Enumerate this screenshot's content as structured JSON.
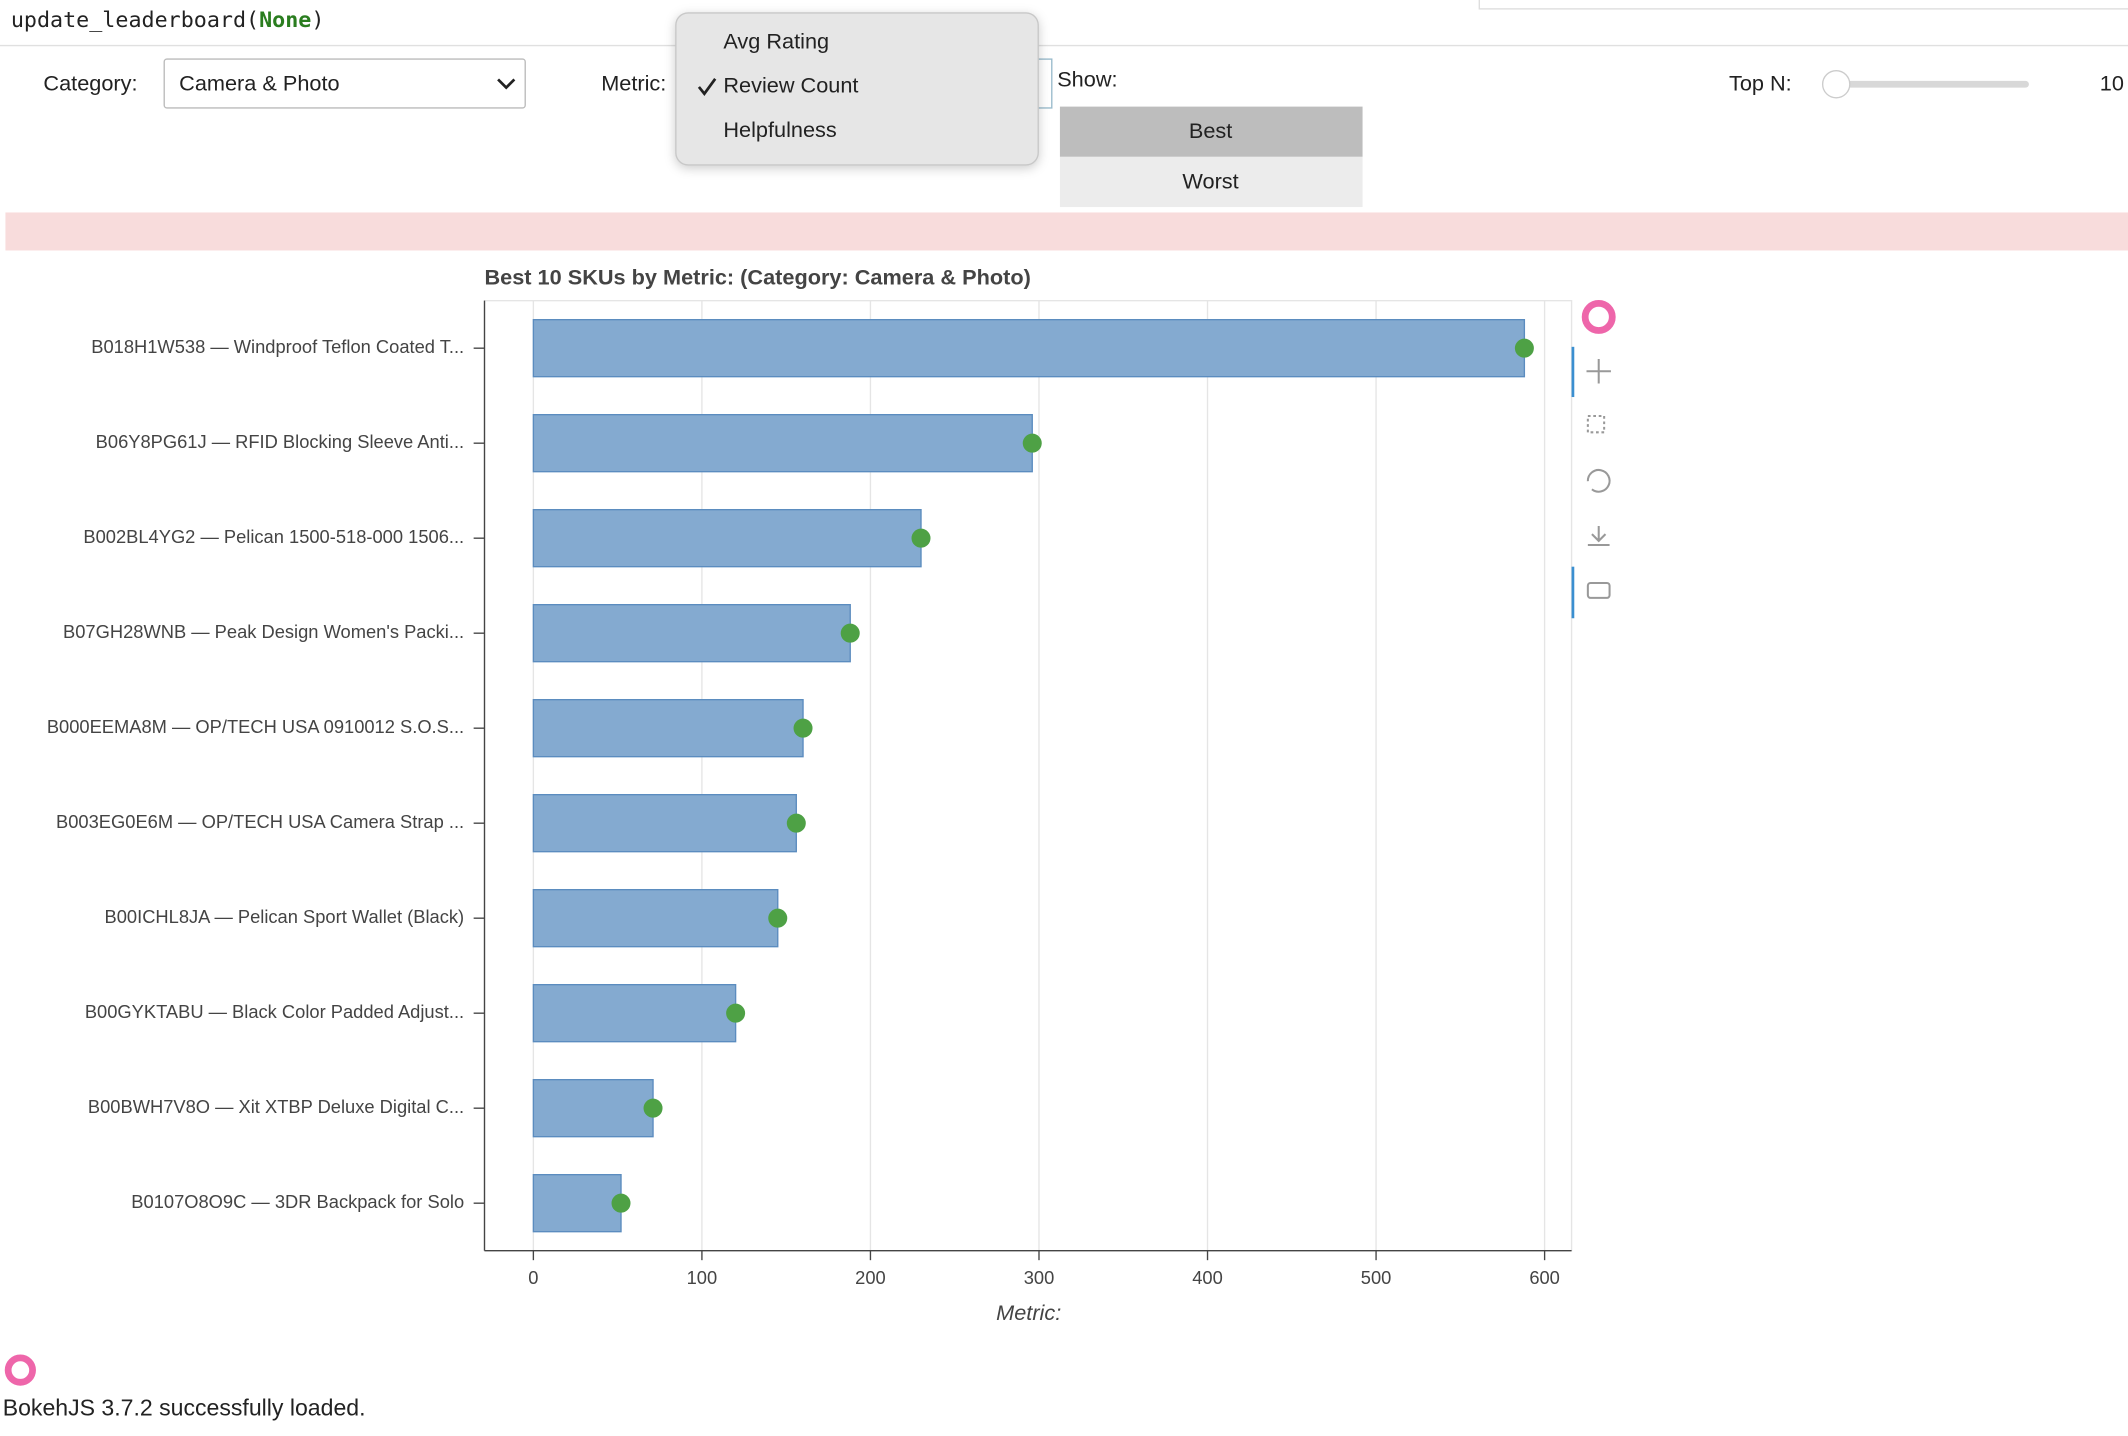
{
  "code": {
    "call": "update_leaderboard(",
    "arg": "None",
    "close": ")"
  },
  "controls": {
    "category_label": "Category:",
    "category_value": "Camera & Photo",
    "metric_label": "Metric:",
    "metric_options": [
      "Avg Rating",
      "Review Count",
      "Helpfulness"
    ],
    "metric_checked": 1,
    "show_label": "Show:",
    "show_options": [
      "Best",
      "Worst"
    ],
    "show_active": 0,
    "topn_label": "Top N:",
    "topn_value": 10
  },
  "chart_data": {
    "type": "bar",
    "orientation": "horizontal",
    "title": "Best 10 SKUs by Metric: (Category: Camera & Photo)",
    "xlabel": "Metric:",
    "categories": [
      "B018H1W538 — Windproof Teflon Coated T...",
      "B06Y8PG61J — RFID Blocking Sleeve Anti...",
      "B002BL4YG2 — Pelican 1500-518-000 1506...",
      "B07GH28WNB — Peak Design Women's Packi...",
      "B000EEMA8M — OP/TECH USA 0910012 S.O.S...",
      "B003EG0E6M — OP/TECH USA Camera Strap ...",
      "B00ICHL8JA — Pelican Sport Wallet (Black)",
      "B00GYKTABU — Black Color Padded Adjust...",
      "B00BWH7V8O — Xit XTBP Deluxe Digital C...",
      "B0107O8O9C — 3DR Backpack for Solo"
    ],
    "values": [
      588,
      296,
      230,
      188,
      160,
      156,
      145,
      120,
      71,
      52
    ],
    "color": "#84aad0",
    "marker_color": "#4ea145",
    "xlim": [
      -29,
      616
    ],
    "xticks": [
      0,
      100,
      200,
      300,
      400,
      500,
      600
    ],
    "grid": true
  },
  "footer": "BokehJS 3.7.2 successfully loaded."
}
